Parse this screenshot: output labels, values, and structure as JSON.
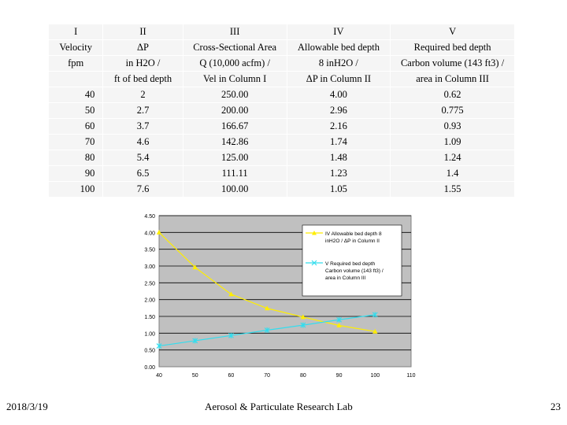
{
  "table": {
    "header_rows": [
      [
        "I",
        "II",
        "III",
        "IV",
        "V"
      ],
      [
        "Velocity",
        "ΔP",
        "Cross-Sectional Area",
        "Allowable bed depth",
        "Required bed depth"
      ],
      [
        "fpm",
        "in H2O /",
        "Q (10,000 acfm) /",
        "8 inH2O /",
        "Carbon volume (143 ft3) /"
      ],
      [
        "",
        "ft of bed depth",
        "Vel in Column I",
        "ΔP in Column II",
        "area in Column III"
      ]
    ],
    "rows": [
      [
        "40",
        "2",
        "250.00",
        "4.00",
        "0.62"
      ],
      [
        "50",
        "2.7",
        "200.00",
        "2.96",
        "0.775"
      ],
      [
        "60",
        "3.7",
        "166.67",
        "2.16",
        "0.93"
      ],
      [
        "70",
        "4.6",
        "142.86",
        "1.74",
        "1.09"
      ],
      [
        "80",
        "5.4",
        "125.00",
        "1.48",
        "1.24"
      ],
      [
        "90",
        "6.5",
        "111.11",
        "1.23",
        "1.4"
      ],
      [
        "100",
        "7.6",
        "100.00",
        "1.05",
        "1.55"
      ]
    ]
  },
  "chart_data": {
    "type": "line",
    "x": [
      40,
      50,
      60,
      70,
      80,
      90,
      100
    ],
    "xlim": [
      40,
      110
    ],
    "xticks": [
      "40",
      "50",
      "60",
      "70",
      "80",
      "90",
      "100",
      "110"
    ],
    "ylim": [
      0,
      4.5
    ],
    "yticks": [
      "0.00",
      "0.50",
      "1.00",
      "1.50",
      "2.00",
      "2.50",
      "3.00",
      "3.50",
      "4.00",
      "4.50"
    ],
    "grid": "horizontal",
    "legend_position": "right",
    "series": [
      {
        "name_lines": [
          "IV Allowable bed depth 8",
          "inH2O / ΔP in Column II"
        ],
        "values": [
          4.0,
          2.96,
          2.16,
          1.74,
          1.48,
          1.23,
          1.05
        ],
        "color": "#ffee00",
        "marker": "triangle"
      },
      {
        "name_lines": [
          "V Required bed depth",
          "Carbon volume (143 ft3) /",
          "area in Column III"
        ],
        "values": [
          0.62,
          0.775,
          0.93,
          1.09,
          1.24,
          1.4,
          1.55
        ],
        "color": "#33ddee",
        "marker": "star"
      }
    ],
    "plot_bg": "#c0c0c0"
  },
  "footer": {
    "date": "2018/3/19",
    "lab": "Aerosol & Particulate Research Lab",
    "page": "23"
  }
}
